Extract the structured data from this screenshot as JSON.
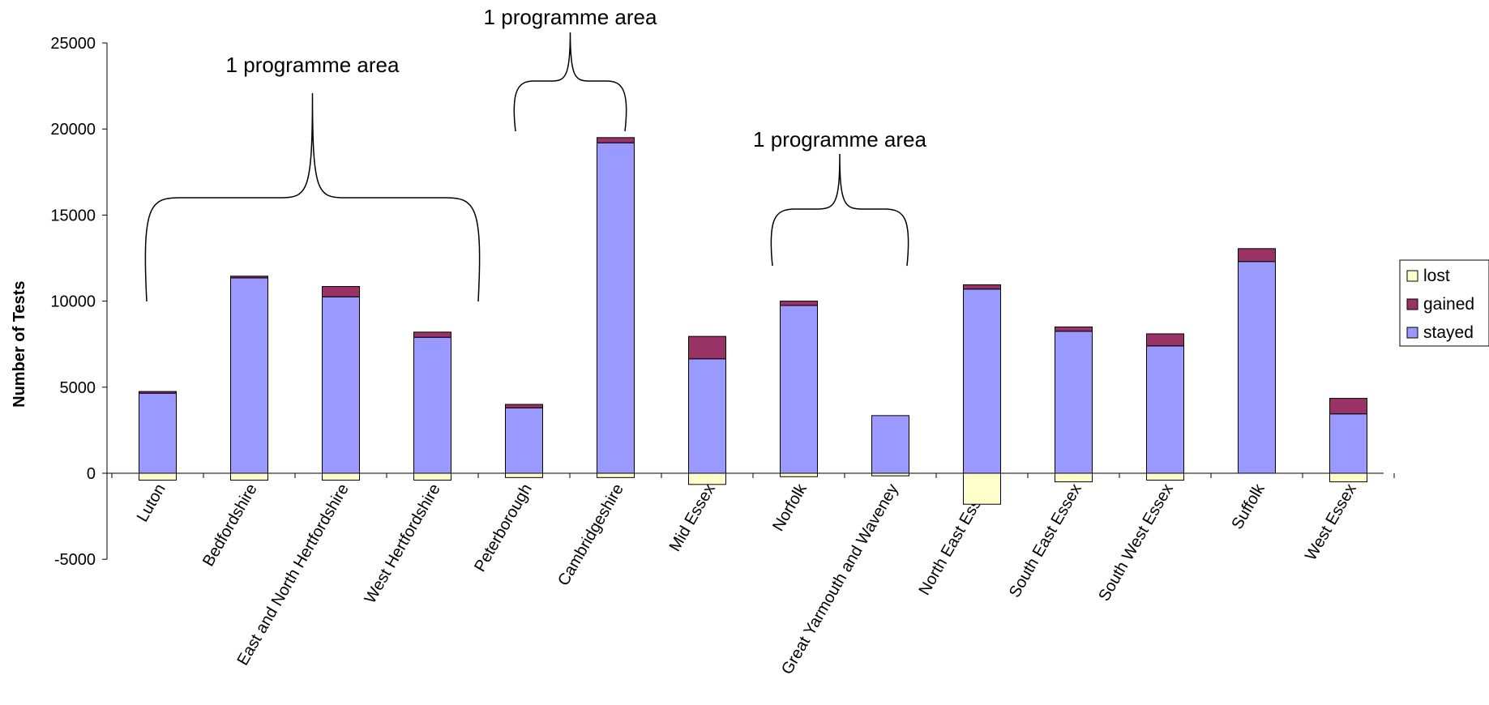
{
  "chart_data": {
    "type": "bar",
    "stacked": true,
    "title": "",
    "xlabel": "",
    "ylabel": "Number of Tests",
    "ylim": [
      -5000,
      25000
    ],
    "yticks": [
      25000,
      20000,
      15000,
      10000,
      5000,
      0,
      -5000
    ],
    "grid": false,
    "legend_position": "right",
    "categories": [
      "Luton",
      "Bedfordshire",
      "East and North Hertfordshire",
      "West Hertfordshire",
      "Peterborough",
      "Cambridgeshire",
      "Mid Essex",
      "Norfolk",
      "Great Yarmouth and Waveney",
      "North East Essex",
      "South East Essex",
      "South West Essex",
      "Suffolk",
      "West Essex"
    ],
    "series": [
      {
        "name": "lost",
        "color": "#FFFFCC",
        "values": [
          -400,
          -400,
          -400,
          -400,
          -250,
          -250,
          -650,
          -200,
          -150,
          -1800,
          -500,
          -400,
          0,
          -500
        ]
      },
      {
        "name": "gained",
        "color": "#993366",
        "values": [
          100,
          100,
          600,
          300,
          200,
          300,
          1300,
          250,
          0,
          250,
          250,
          700,
          750,
          900
        ]
      },
      {
        "name": "stayed",
        "color": "#9999FF",
        "values": [
          4650,
          11350,
          10250,
          7900,
          3800,
          19200,
          6650,
          9750,
          3350,
          10700,
          8250,
          7400,
          12300,
          3450
        ]
      }
    ],
    "annotations": [
      {
        "text": "1 programme area",
        "spans": [
          "Luton",
          "West Hertfordshire"
        ]
      },
      {
        "text": "1 programme area",
        "spans": [
          "Peterborough",
          "Cambridgeshire"
        ]
      },
      {
        "text": "1 programme area",
        "spans": [
          "Norfolk",
          "Great Yarmouth and Waveney"
        ]
      }
    ]
  }
}
